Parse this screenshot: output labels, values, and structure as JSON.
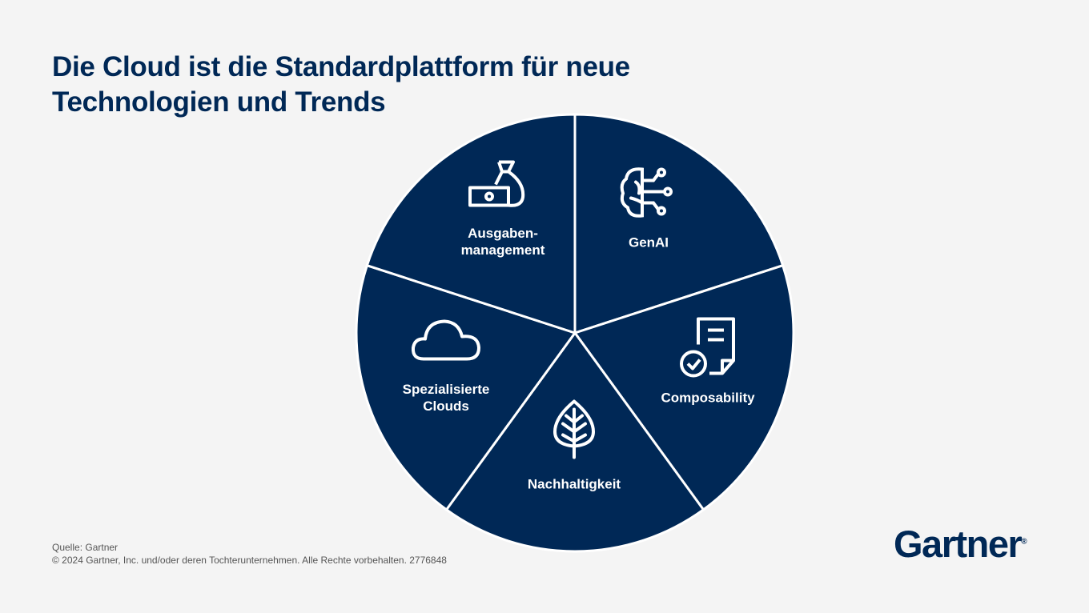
{
  "title_line1": "Die Cloud ist die Standardplattform für neue",
  "title_line2": "Technologien und Trends",
  "colors": {
    "segment": "#002856",
    "divider": "#ffffff",
    "background": "#f4f4f4"
  },
  "segments": [
    {
      "label": "GenAI",
      "icon": "brain-circuit-icon"
    },
    {
      "label": "Composability",
      "icon": "document-check-icon"
    },
    {
      "label": "Nachhaltigkeit",
      "icon": "leaf-icon"
    },
    {
      "label": "Spezialisierte Clouds",
      "icon": "cloud-icon"
    },
    {
      "label": "Ausgaben-management",
      "icon": "money-bag-icon"
    }
  ],
  "labels": {
    "genai": "GenAI",
    "composability": "Composability",
    "nachhaltigkeit": "Nachhaltigkeit",
    "spez1": "Spezialisierte",
    "spez2": "Clouds",
    "ausg1": "Ausgaben-",
    "ausg2": "management"
  },
  "footer": {
    "source": "Quelle: Gartner",
    "copyright": "© 2024 Gartner, Inc. und/oder deren Tochterunternehmen. Alle Rechte vorbehalten. 2776848"
  },
  "logo": {
    "text": "Gartner",
    "mark": "®"
  }
}
